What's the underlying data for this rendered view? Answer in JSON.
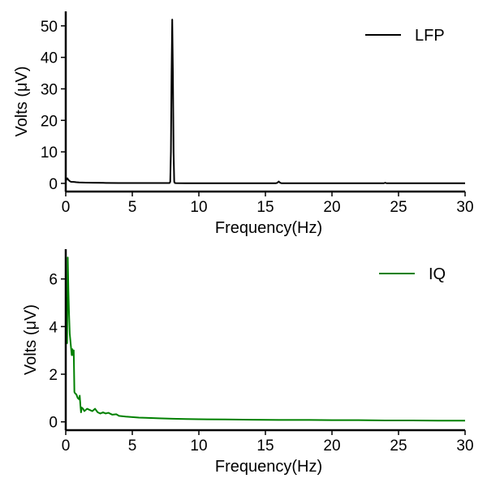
{
  "chart_data": [
    {
      "type": "line",
      "title": "",
      "xlabel": "Frequency(Hz)",
      "ylabel": "Volts (μV)",
      "xlim": [
        0,
        30
      ],
      "ylim": [
        -2.6,
        54.6
      ],
      "xticks": [
        0,
        5,
        10,
        15,
        20,
        25,
        30
      ],
      "yticks": [
        0,
        10,
        20,
        30,
        40,
        50
      ],
      "grid": false,
      "legend_position": "top-right",
      "series": [
        {
          "name": "LFP",
          "color": "#000000",
          "x": [
            0,
            0.05,
            0.12,
            0.2,
            0.3,
            0.4,
            0.6,
            0.8,
            1.0,
            1.5,
            2,
            3,
            4,
            5,
            6,
            7,
            7.7,
            7.8,
            7.85,
            7.9,
            7.95,
            8.0,
            8.05,
            8.1,
            8.15,
            8.2,
            8.3,
            9,
            10,
            12,
            14,
            15.8,
            15.9,
            16.0,
            16.1,
            16.2,
            18,
            20,
            22,
            23.9,
            24.0,
            24.1,
            26,
            28,
            30
          ],
          "y": [
            0.8,
            1.2,
            1.6,
            1.1,
            0.7,
            0.5,
            0.45,
            0.35,
            0.3,
            0.25,
            0.2,
            0.15,
            0.12,
            0.1,
            0.1,
            0.1,
            0.1,
            0.1,
            0.5,
            10,
            35,
            52,
            35,
            10,
            0.5,
            0.1,
            0.08,
            0.05,
            0.05,
            0.05,
            0.05,
            0.05,
            0.2,
            0.6,
            0.2,
            0.05,
            0.04,
            0.04,
            0.04,
            0.04,
            0.2,
            0.04,
            0.03,
            0.03,
            0.03
          ]
        }
      ]
    },
    {
      "type": "line",
      "title": "",
      "xlabel": "Frequency(Hz)",
      "ylabel": "Volts (μV)",
      "xlim": [
        0,
        30
      ],
      "ylim": [
        -0.35,
        7.25
      ],
      "xticks": [
        0,
        5,
        10,
        15,
        20,
        25,
        30
      ],
      "yticks": [
        0,
        2,
        4,
        6
      ],
      "grid": false,
      "legend_position": "top-right",
      "series": [
        {
          "name": "IQ",
          "color": "#008000",
          "x": [
            0,
            0.05,
            0.1,
            0.15,
            0.2,
            0.25,
            0.3,
            0.35,
            0.4,
            0.45,
            0.5,
            0.55,
            0.6,
            0.65,
            0.7,
            0.8,
            0.9,
            1.0,
            1.05,
            1.1,
            1.15,
            1.2,
            1.3,
            1.4,
            1.5,
            1.6,
            1.8,
            2.0,
            2.2,
            2.4,
            2.6,
            2.8,
            3.0,
            3.2,
            3.5,
            3.8,
            4.0,
            4.5,
            5,
            5.5,
            6,
            7,
            8,
            9,
            10,
            12,
            14,
            16,
            18,
            20,
            22,
            24,
            26,
            28,
            30
          ],
          "y": [
            3.6,
            5.2,
            3.3,
            6.9,
            5.5,
            4.5,
            3.7,
            3.4,
            3.1,
            2.8,
            3.05,
            2.8,
            3.0,
            1.25,
            1.2,
            1.15,
            1.0,
            0.95,
            1.1,
            0.7,
            0.4,
            0.6,
            0.55,
            0.45,
            0.5,
            0.55,
            0.5,
            0.45,
            0.55,
            0.4,
            0.35,
            0.4,
            0.35,
            0.38,
            0.3,
            0.32,
            0.25,
            0.22,
            0.2,
            0.18,
            0.17,
            0.15,
            0.13,
            0.12,
            0.11,
            0.1,
            0.09,
            0.08,
            0.08,
            0.07,
            0.07,
            0.06,
            0.06,
            0.05,
            0.05
          ]
        }
      ]
    }
  ]
}
